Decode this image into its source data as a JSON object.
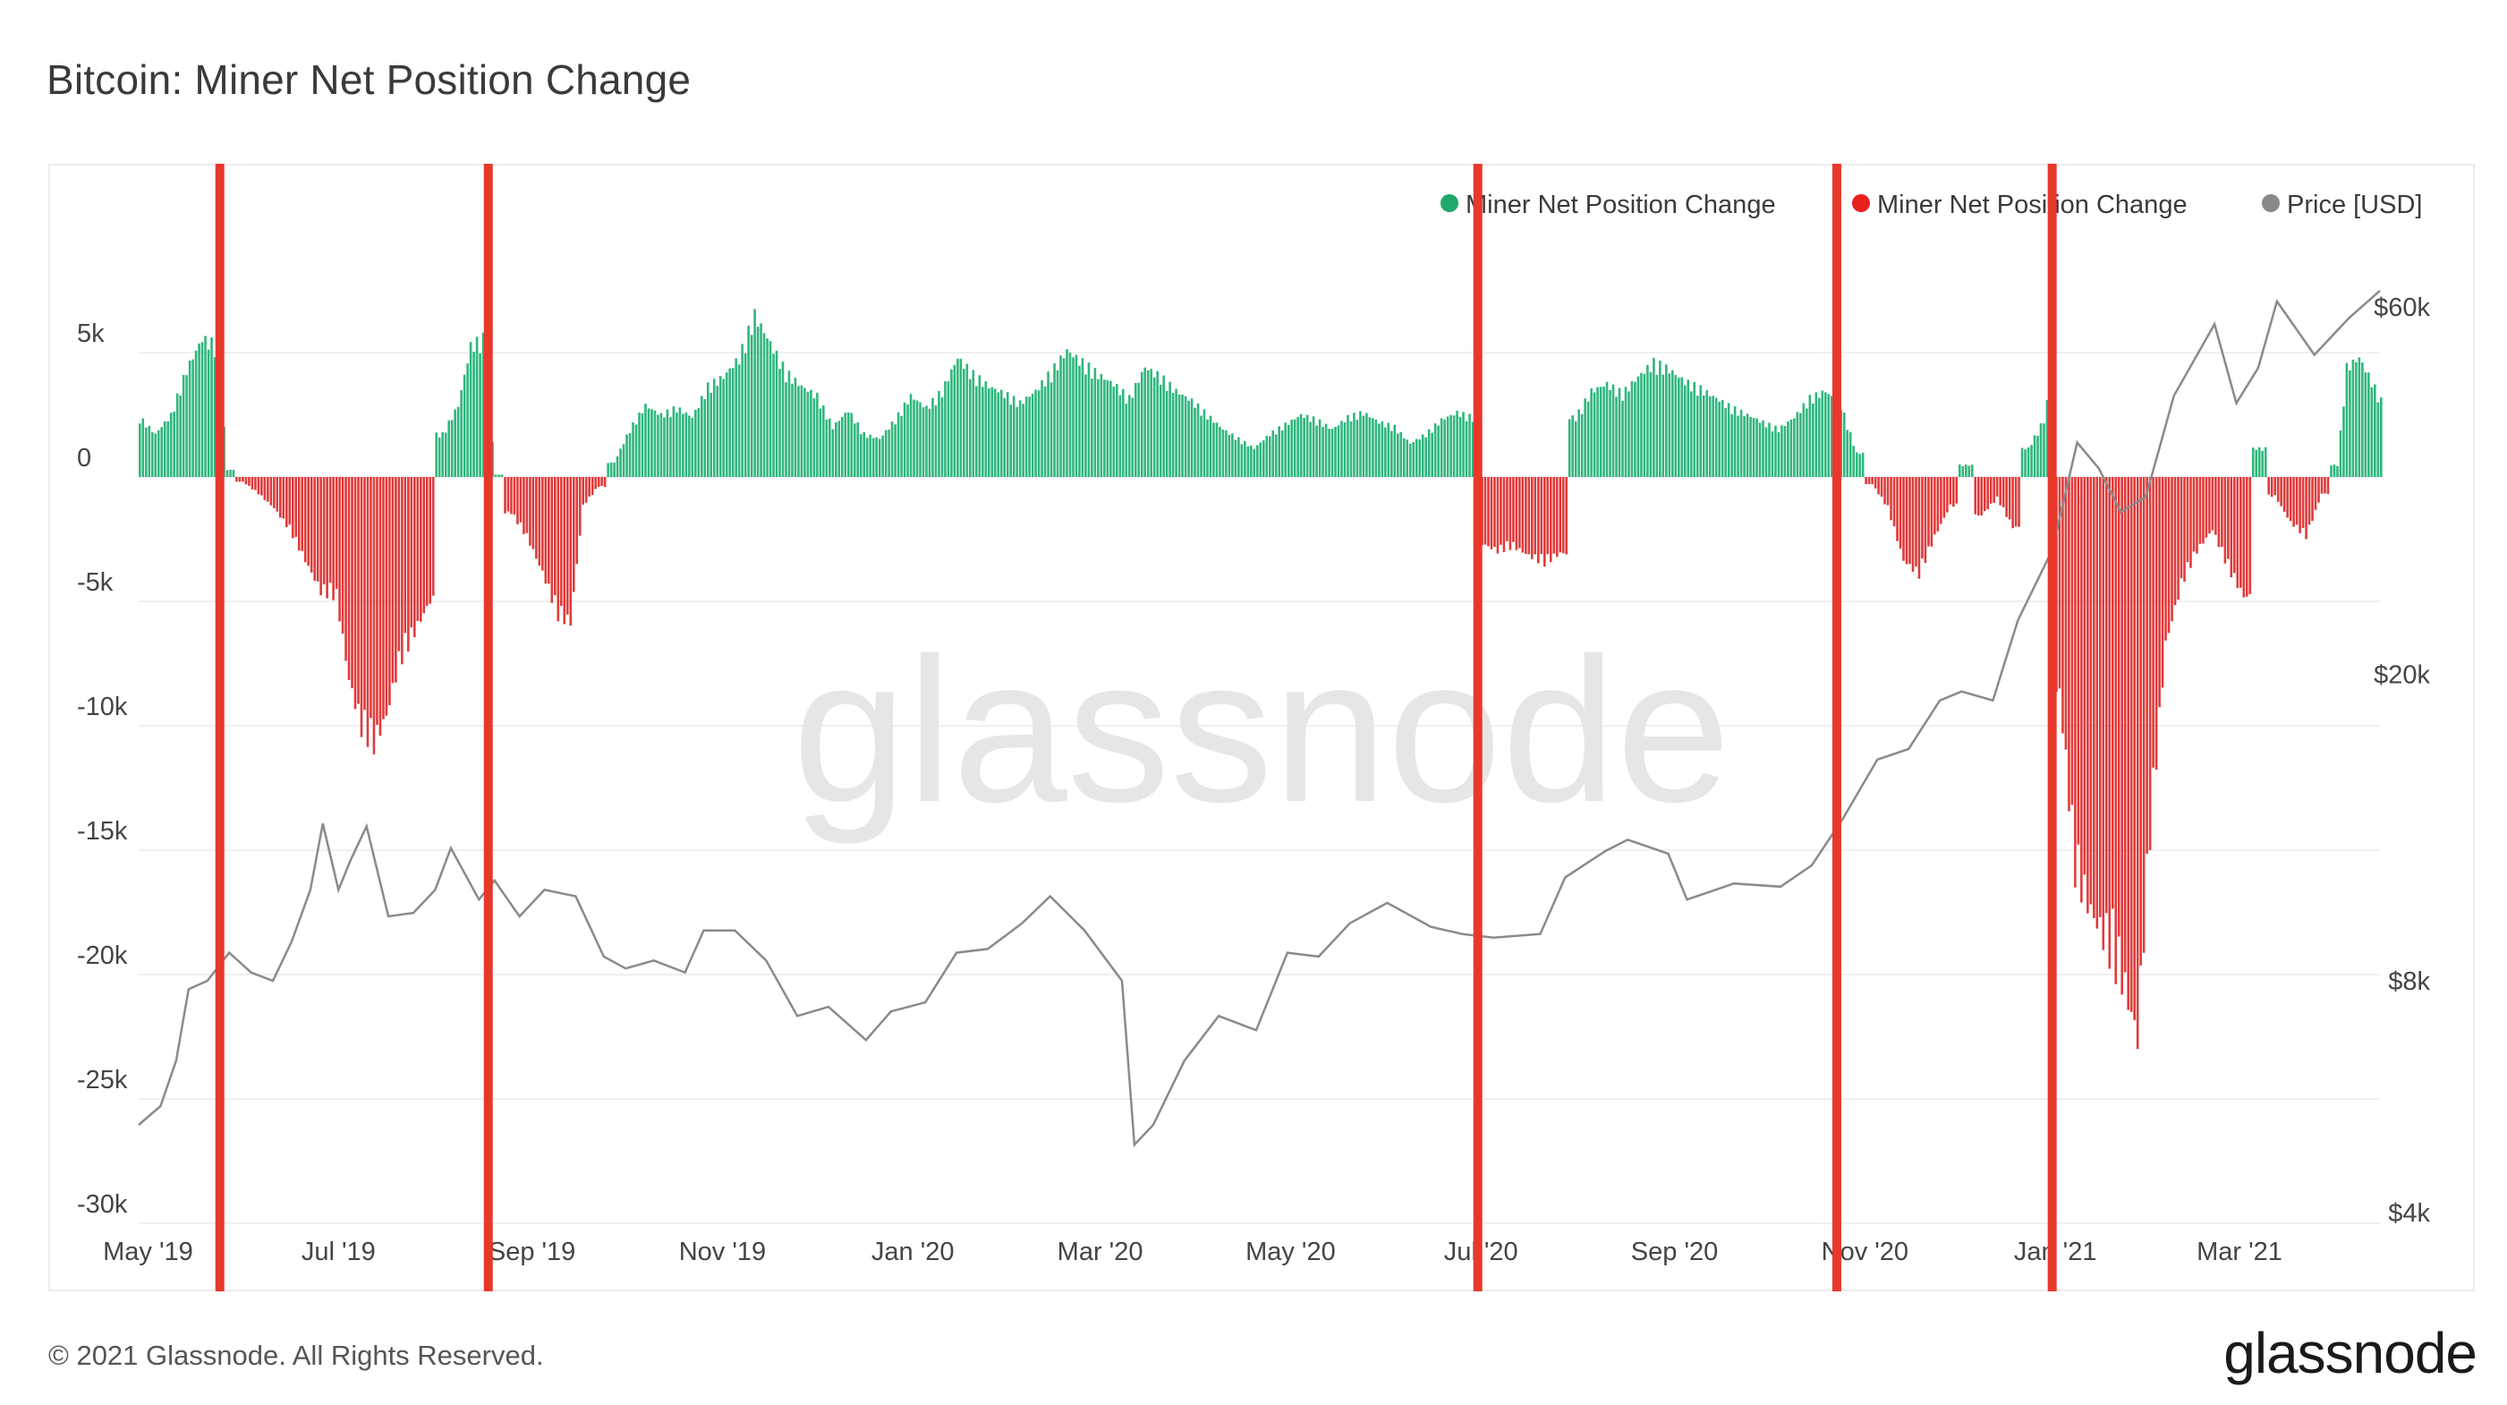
{
  "title": "Bitcoin: Miner Net Position Change",
  "footer": {
    "copyright": "© 2021 Glassnode. All Rights Reserved.",
    "logo": "glassnode"
  },
  "watermark": "glassnode",
  "colors": {
    "positive": "#2fb67c",
    "negative": "#e03a3a",
    "price": "#8a8a8a",
    "marker": "#e8382b",
    "grid": "#efefef"
  },
  "legend": [
    {
      "label": "Miner Net Position Change",
      "color": "#1fa86a"
    },
    {
      "label": "Miner Net Position Change",
      "color": "#e8201e"
    },
    {
      "label": "Price [USD]",
      "color": "#888888"
    }
  ],
  "chart_data": {
    "type": "bar",
    "title": "Bitcoin: Miner Net Position Change",
    "x_range": [
      "2019-04-28",
      "2021-04-15"
    ],
    "x_ticks": [
      {
        "label": "May '19",
        "date": "2019-05-01"
      },
      {
        "label": "Jul '19",
        "date": "2019-07-01"
      },
      {
        "label": "Sep '19",
        "date": "2019-09-01"
      },
      {
        "label": "Nov '19",
        "date": "2019-11-01"
      },
      {
        "label": "Jan '20",
        "date": "2020-01-01"
      },
      {
        "label": "Mar '20",
        "date": "2020-03-01"
      },
      {
        "label": "May '20",
        "date": "2020-05-01"
      },
      {
        "label": "Jul '20",
        "date": "2020-07-01"
      },
      {
        "label": "Sep '20",
        "date": "2020-09-01"
      },
      {
        "label": "Nov '20",
        "date": "2020-11-01"
      },
      {
        "label": "Jan '21",
        "date": "2021-01-01"
      },
      {
        "label": "Mar '21",
        "date": "2021-03-01"
      }
    ],
    "y_left": {
      "ticks": [
        5000,
        0,
        -5000,
        -10000,
        -15000,
        -20000,
        -25000,
        -30000
      ],
      "tick_labels": [
        "5k",
        "0",
        "-5k",
        "-10k",
        "-15k",
        "-20k",
        "-25k",
        "-30k"
      ],
      "range": [
        -30000,
        10000
      ]
    },
    "y_right": {
      "scale": "log",
      "ticks": [
        60000,
        20000,
        8000,
        4000
      ],
      "tick_labels": [
        "$60k",
        "$20k",
        "$8k",
        "$4k"
      ],
      "range": [
        4000,
        60000
      ]
    },
    "grid": true,
    "legend_position": "top-right",
    "series": [
      {
        "name": "Miner Net Position Change",
        "axis": "left",
        "type": "bar",
        "unit": "BTC",
        "points": [
          [
            "2019-04-28",
            2500
          ],
          [
            "2019-05-03",
            1800
          ],
          [
            "2019-05-08",
            2600
          ],
          [
            "2019-05-13",
            4500
          ],
          [
            "2019-05-18",
            5800
          ],
          [
            "2019-05-23",
            5500
          ],
          [
            "2019-05-26",
            300
          ],
          [
            "2019-05-31",
            -200
          ],
          [
            "2019-06-05",
            -700
          ],
          [
            "2019-06-10",
            -1300
          ],
          [
            "2019-06-15",
            -2200
          ],
          [
            "2019-06-20",
            -3500
          ],
          [
            "2019-06-25",
            -4800
          ],
          [
            "2019-06-30",
            -5000
          ],
          [
            "2019-07-04",
            -8500
          ],
          [
            "2019-07-08",
            -10500
          ],
          [
            "2019-07-12",
            -11200
          ],
          [
            "2019-07-16",
            -10000
          ],
          [
            "2019-07-20",
            -7800
          ],
          [
            "2019-07-25",
            -6500
          ],
          [
            "2019-07-30",
            -5200
          ],
          [
            "2019-08-03",
            1800
          ],
          [
            "2019-08-08",
            3000
          ],
          [
            "2019-08-12",
            5500
          ],
          [
            "2019-08-16",
            5800
          ],
          [
            "2019-08-20",
            100
          ],
          [
            "2019-08-25",
            -1500
          ],
          [
            "2019-08-30",
            -2500
          ],
          [
            "2019-09-04",
            -4000
          ],
          [
            "2019-09-09",
            -5800
          ],
          [
            "2019-09-13",
            -6100
          ],
          [
            "2019-09-17",
            -1200
          ],
          [
            "2019-09-22",
            -400
          ],
          [
            "2019-09-27",
            600
          ],
          [
            "2019-10-02",
            2000
          ],
          [
            "2019-10-07",
            3000
          ],
          [
            "2019-10-12",
            2600
          ],
          [
            "2019-10-17",
            2900
          ],
          [
            "2019-10-22",
            2500
          ],
          [
            "2019-10-27",
            3800
          ],
          [
            "2019-11-01",
            4200
          ],
          [
            "2019-11-06",
            5000
          ],
          [
            "2019-11-11",
            6800
          ],
          [
            "2019-11-16",
            5600
          ],
          [
            "2019-11-21",
            4400
          ],
          [
            "2019-11-26",
            3800
          ],
          [
            "2019-12-01",
            3400
          ],
          [
            "2019-12-06",
            2100
          ],
          [
            "2019-12-11",
            2800
          ],
          [
            "2019-12-16",
            1800
          ],
          [
            "2019-12-21",
            1600
          ],
          [
            "2019-12-26",
            2400
          ],
          [
            "2019-12-31",
            3400
          ],
          [
            "2020-01-05",
            2900
          ],
          [
            "2020-01-10",
            3600
          ],
          [
            "2020-01-15",
            5000
          ],
          [
            "2020-01-20",
            4300
          ],
          [
            "2020-01-25",
            3800
          ],
          [
            "2020-01-30",
            3500
          ],
          [
            "2020-02-04",
            3100
          ],
          [
            "2020-02-09",
            3600
          ],
          [
            "2020-02-14",
            4400
          ],
          [
            "2020-02-19",
            5300
          ],
          [
            "2020-02-24",
            4800
          ],
          [
            "2020-02-29",
            4300
          ],
          [
            "2020-03-05",
            3900
          ],
          [
            "2020-03-10",
            3300
          ],
          [
            "2020-03-15",
            4600
          ],
          [
            "2020-03-20",
            4200
          ],
          [
            "2020-03-25",
            3600
          ],
          [
            "2020-03-30",
            3200
          ],
          [
            "2020-04-04",
            2600
          ],
          [
            "2020-04-09",
            2000
          ],
          [
            "2020-04-14",
            1600
          ],
          [
            "2020-04-19",
            1200
          ],
          [
            "2020-04-24",
            1800
          ],
          [
            "2020-04-29",
            2200
          ],
          [
            "2020-05-04",
            2600
          ],
          [
            "2020-05-09",
            2400
          ],
          [
            "2020-05-14",
            2000
          ],
          [
            "2020-05-19",
            2500
          ],
          [
            "2020-05-24",
            2700
          ],
          [
            "2020-05-29",
            2300
          ],
          [
            "2020-06-03",
            2100
          ],
          [
            "2020-06-08",
            1400
          ],
          [
            "2020-06-13",
            1800
          ],
          [
            "2020-06-18",
            2400
          ],
          [
            "2020-06-23",
            2700
          ],
          [
            "2020-06-28",
            2500
          ],
          [
            "2020-07-01",
            -2800
          ],
          [
            "2020-07-06",
            -3100
          ],
          [
            "2020-07-11",
            -2900
          ],
          [
            "2020-07-16",
            -3300
          ],
          [
            "2020-07-21",
            -3600
          ],
          [
            "2020-07-26",
            -3200
          ],
          [
            "2020-07-31",
            2500
          ],
          [
            "2020-08-05",
            3600
          ],
          [
            "2020-08-10",
            3900
          ],
          [
            "2020-08-15",
            3500
          ],
          [
            "2020-08-20",
            4200
          ],
          [
            "2020-08-25",
            4800
          ],
          [
            "2020-08-30",
            4500
          ],
          [
            "2020-09-04",
            4000
          ],
          [
            "2020-09-09",
            3700
          ],
          [
            "2020-09-14",
            3300
          ],
          [
            "2020-09-19",
            2900
          ],
          [
            "2020-09-24",
            2600
          ],
          [
            "2020-09-29",
            2300
          ],
          [
            "2020-10-04",
            2000
          ],
          [
            "2020-10-09",
            2500
          ],
          [
            "2020-10-14",
            3300
          ],
          [
            "2020-10-19",
            3600
          ],
          [
            "2020-10-24",
            3000
          ],
          [
            "2020-10-29",
            1000
          ],
          [
            "2020-11-03",
            -300
          ],
          [
            "2020-11-08",
            -1300
          ],
          [
            "2020-11-13",
            -3500
          ],
          [
            "2020-11-18",
            -4100
          ],
          [
            "2020-11-23",
            -2500
          ],
          [
            "2020-11-28",
            -1200
          ],
          [
            "2020-12-03",
            500
          ],
          [
            "2020-12-08",
            -1600
          ],
          [
            "2020-12-13",
            -900
          ],
          [
            "2020-12-18",
            -2100
          ],
          [
            "2020-12-23",
            1200
          ],
          [
            "2020-12-28",
            2400
          ],
          [
            "2020-12-31",
            4600
          ],
          [
            "2021-01-02",
            -9000
          ],
          [
            "2021-01-07",
            -16500
          ],
          [
            "2021-01-12",
            -18200
          ],
          [
            "2021-01-17",
            -19500
          ],
          [
            "2021-01-22",
            -21000
          ],
          [
            "2021-01-27",
            -23500
          ],
          [
            "2021-01-31",
            -15000
          ],
          [
            "2021-02-05",
            -7000
          ],
          [
            "2021-02-10",
            -4500
          ],
          [
            "2021-02-15",
            -3100
          ],
          [
            "2021-02-20",
            -2200
          ],
          [
            "2021-02-25",
            -3800
          ],
          [
            "2021-03-02",
            -5000
          ],
          [
            "2021-03-07",
            1200
          ],
          [
            "2021-03-12",
            -800
          ],
          [
            "2021-03-17",
            -1900
          ],
          [
            "2021-03-22",
            -2500
          ],
          [
            "2021-03-27",
            -700
          ],
          [
            "2021-04-01",
            500
          ],
          [
            "2021-04-04",
            4600
          ],
          [
            "2021-04-08",
            5000
          ],
          [
            "2021-04-12",
            4000
          ],
          [
            "2021-04-15",
            3200
          ]
        ]
      },
      {
        "name": "Price [USD]",
        "axis": "right",
        "type": "line",
        "points": [
          [
            "2019-04-28",
            5200
          ],
          [
            "2019-05-05",
            5500
          ],
          [
            "2019-05-10",
            6300
          ],
          [
            "2019-05-14",
            7800
          ],
          [
            "2019-05-20",
            8000
          ],
          [
            "2019-05-27",
            8700
          ],
          [
            "2019-06-03",
            8200
          ],
          [
            "2019-06-10",
            8000
          ],
          [
            "2019-06-16",
            9000
          ],
          [
            "2019-06-22",
            10500
          ],
          [
            "2019-06-26",
            12800
          ],
          [
            "2019-07-01",
            10500
          ],
          [
            "2019-07-05",
            11500
          ],
          [
            "2019-07-10",
            12700
          ],
          [
            "2019-07-17",
            9700
          ],
          [
            "2019-07-25",
            9800
          ],
          [
            "2019-08-01",
            10500
          ],
          [
            "2019-08-06",
            11900
          ],
          [
            "2019-08-15",
            10200
          ],
          [
            "2019-08-20",
            10800
          ],
          [
            "2019-08-28",
            9700
          ],
          [
            "2019-09-05",
            10500
          ],
          [
            "2019-09-15",
            10300
          ],
          [
            "2019-09-24",
            8600
          ],
          [
            "2019-10-01",
            8300
          ],
          [
            "2019-10-10",
            8500
          ],
          [
            "2019-10-20",
            8200
          ],
          [
            "2019-10-26",
            9300
          ],
          [
            "2019-11-05",
            9300
          ],
          [
            "2019-11-15",
            8500
          ],
          [
            "2019-11-25",
            7200
          ],
          [
            "2019-12-05",
            7400
          ],
          [
            "2019-12-17",
            6700
          ],
          [
            "2019-12-25",
            7300
          ],
          [
            "2020-01-05",
            7500
          ],
          [
            "2020-01-15",
            8700
          ],
          [
            "2020-01-25",
            8800
          ],
          [
            "2020-02-05",
            9500
          ],
          [
            "2020-02-14",
            10300
          ],
          [
            "2020-02-25",
            9300
          ],
          [
            "2020-03-08",
            8000
          ],
          [
            "2020-03-12",
            4900
          ],
          [
            "2020-03-18",
            5200
          ],
          [
            "2020-03-28",
            6300
          ],
          [
            "2020-04-08",
            7200
          ],
          [
            "2020-04-20",
            6900
          ],
          [
            "2020-04-30",
            8700
          ],
          [
            "2020-05-10",
            8600
          ],
          [
            "2020-05-20",
            9500
          ],
          [
            "2020-06-01",
            10100
          ],
          [
            "2020-06-15",
            9400
          ],
          [
            "2020-06-25",
            9200
          ],
          [
            "2020-07-05",
            9100
          ],
          [
            "2020-07-20",
            9200
          ],
          [
            "2020-07-28",
            10900
          ],
          [
            "2020-08-10",
            11800
          ],
          [
            "2020-08-17",
            12200
          ],
          [
            "2020-08-30",
            11700
          ],
          [
            "2020-09-05",
            10200
          ],
          [
            "2020-09-20",
            10700
          ],
          [
            "2020-10-05",
            10600
          ],
          [
            "2020-10-15",
            11300
          ],
          [
            "2020-10-25",
            13000
          ],
          [
            "2020-11-05",
            15500
          ],
          [
            "2020-11-15",
            16000
          ],
          [
            "2020-11-25",
            18500
          ],
          [
            "2020-12-02",
            19000
          ],
          [
            "2020-12-12",
            18500
          ],
          [
            "2020-12-20",
            23500
          ],
          [
            "2020-12-31",
            29000
          ],
          [
            "2021-01-08",
            40000
          ],
          [
            "2021-01-15",
            37000
          ],
          [
            "2021-01-22",
            32500
          ],
          [
            "2021-01-30",
            34000
          ],
          [
            "2021-02-08",
            46000
          ],
          [
            "2021-02-21",
            57000
          ],
          [
            "2021-02-28",
            45000
          ],
          [
            "2021-03-07",
            50000
          ],
          [
            "2021-03-13",
            61000
          ],
          [
            "2021-03-25",
            52000
          ],
          [
            "2021-04-05",
            58000
          ],
          [
            "2021-04-15",
            63000
          ]
        ]
      }
    ],
    "annotations": {
      "vertical_lines_dates": [
        "2019-05-24",
        "2019-08-18",
        "2020-06-30",
        "2020-10-23",
        "2020-12-31"
      ],
      "color": "#e8382b"
    }
  }
}
